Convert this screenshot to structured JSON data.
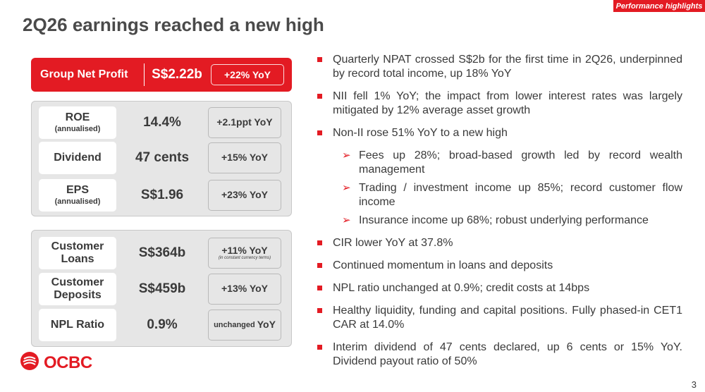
{
  "header": {
    "tag": "Performance highlights",
    "title": "2Q26 earnings reached a new high"
  },
  "group_net_profit": {
    "label": "Group Net Profit",
    "value": "S$2.22b",
    "change": "+22% YoY"
  },
  "panel1": [
    {
      "label": "ROE",
      "sub": "(annualised)",
      "value": "14.4%",
      "change": "+2.1ppt YoY"
    },
    {
      "label": "Dividend",
      "sub": "",
      "value": "47 cents",
      "change": "+15% YoY"
    },
    {
      "label": "EPS",
      "sub": "(annualised)",
      "value": "S$1.96",
      "change": "+23% YoY"
    }
  ],
  "panel2": [
    {
      "label_line1": "Customer",
      "label_line2": "Loans",
      "value": "S$364b",
      "change": "+11% YoY",
      "note": "(in constant currency terms)"
    },
    {
      "label_line1": "Customer",
      "label_line2": "Deposits",
      "value": "S$459b",
      "change": "+13% YoY",
      "note": ""
    },
    {
      "label_line1": "NPL Ratio",
      "label_line2": "",
      "value": "0.9%",
      "change_prefix": "unchanged",
      "change": "YoY",
      "note": ""
    }
  ],
  "bullets": [
    "Quarterly NPAT crossed S$2b for the first time in 2Q26, underpinned by record total income, up 18% YoY",
    "NII fell 1% YoY; the impact from lower interest rates was largely mitigated by 12% average asset growth",
    "Non-II rose 51% YoY to a new high",
    "CIR lower YoY at 37.8%",
    "Continued momentum in loans and deposits",
    "NPL ratio unchanged at 0.9%; credit costs at 14bps",
    "Healthy liquidity, funding and capital positions. Fully phased-in CET1 CAR at 14.0%",
    "Interim dividend of 47 cents declared, up 6 cents or 15% YoY. Dividend payout ratio of 50%"
  ],
  "sub_bullets": [
    "Fees up 28%; broad-based growth led by record wealth management",
    "Trading / investment income up 85%; record customer flow income",
    "Insurance income up 68%; robust underlying performance"
  ],
  "logo": {
    "text": "OCBC",
    "icon": "ocbc-logo-icon"
  },
  "page_number": "3",
  "colors": {
    "accent": "#e31b23",
    "panel": "#e6e6e6",
    "text": "#3a3a3a"
  }
}
